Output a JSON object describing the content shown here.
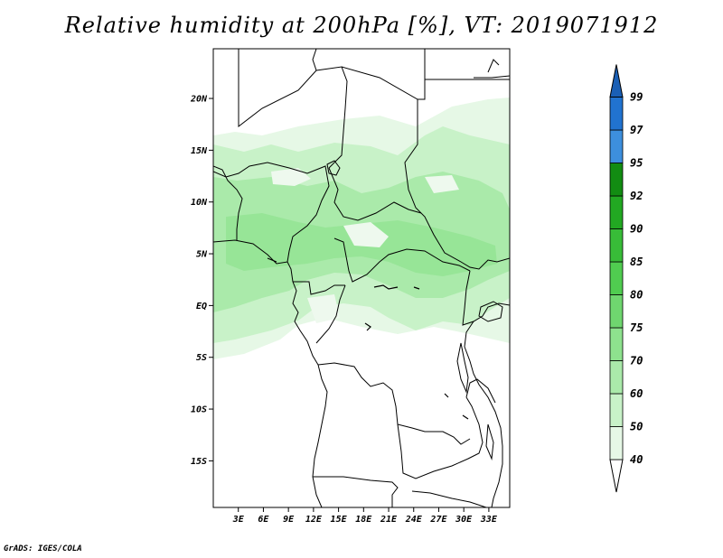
{
  "title": "Relative humidity at 200hPa [%], VT: 2019071912",
  "credit": "GrADS: IGES/COLA",
  "map": {
    "lon_range": [
      0,
      35.5
    ],
    "lat_range": [
      -19.5,
      24.8
    ],
    "lat_ticks": [
      {
        "value": 20,
        "label": "20N"
      },
      {
        "value": 15,
        "label": "15N"
      },
      {
        "value": 10,
        "label": "10N"
      },
      {
        "value": 5,
        "label": "5N"
      },
      {
        "value": 0,
        "label": "EQ"
      },
      {
        "value": -5,
        "label": "5S"
      },
      {
        "value": -10,
        "label": "10S"
      },
      {
        "value": -15,
        "label": "15S"
      }
    ],
    "lon_ticks": [
      {
        "value": 3,
        "label": "3E"
      },
      {
        "value": 6,
        "label": "6E"
      },
      {
        "value": 9,
        "label": "9E"
      },
      {
        "value": 12,
        "label": "12E"
      },
      {
        "value": 15,
        "label": "15E"
      },
      {
        "value": 18,
        "label": "18E"
      },
      {
        "value": 21,
        "label": "21E"
      },
      {
        "value": 24,
        "label": "24E"
      },
      {
        "value": 27,
        "label": "27E"
      },
      {
        "value": 30,
        "label": "30E"
      },
      {
        "value": 33,
        "label": "33E"
      }
    ]
  },
  "colorbar": {
    "levels": [
      {
        "label": "40",
        "color": "#e6f8e6"
      },
      {
        "label": "50",
        "color": "#c8f2c8"
      },
      {
        "label": "60",
        "color": "#aaeaaa"
      },
      {
        "label": "70",
        "color": "#8ee28e"
      },
      {
        "label": "75",
        "color": "#6fd66f"
      },
      {
        "label": "80",
        "color": "#50cc50"
      },
      {
        "label": "85",
        "color": "#38bc38"
      },
      {
        "label": "90",
        "color": "#22a822"
      },
      {
        "label": "92",
        "color": "#128c12"
      },
      {
        "label": "95",
        "color": "#3d8fdd"
      },
      {
        "label": "97",
        "color": "#2173d0"
      },
      {
        "label": "99",
        "color": "#1a5fb5"
      }
    ]
  }
}
